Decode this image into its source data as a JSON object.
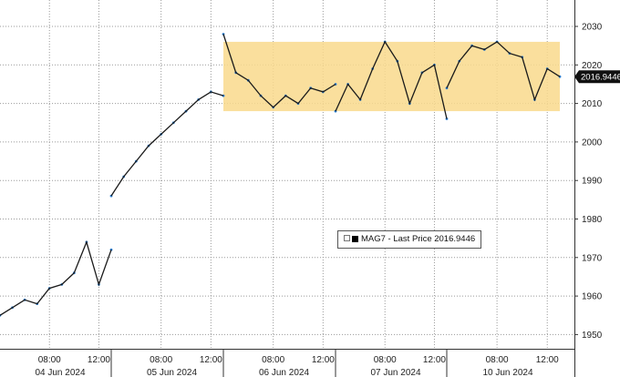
{
  "chart_data": {
    "type": "line",
    "series": [
      {
        "name": "MAG7",
        "x": [
          "06-04 04:00",
          "06-04 05:00",
          "06-04 06:00",
          "06-04 07:00",
          "06-04 08:00",
          "06-04 09:00",
          "06-04 10:00",
          "06-04 11:00",
          "06-04 12:00",
          "06-04 13:00",
          "06-05 04:00",
          "06-05 05:00",
          "06-05 06:00",
          "06-05 07:00",
          "06-05 08:00",
          "06-05 09:00",
          "06-05 10:00",
          "06-05 11:00",
          "06-05 12:00",
          "06-05 13:00",
          "06-06 04:00",
          "06-06 05:00",
          "06-06 06:00",
          "06-06 07:00",
          "06-06 08:00",
          "06-06 09:00",
          "06-06 10:00",
          "06-06 11:00",
          "06-06 12:00",
          "06-06 13:00",
          "06-07 04:00",
          "06-07 05:00",
          "06-07 06:00",
          "06-07 07:00",
          "06-07 08:00",
          "06-07 09:00",
          "06-07 10:00",
          "06-07 11:00",
          "06-07 12:00",
          "06-07 13:00",
          "06-10 04:00",
          "06-10 05:00",
          "06-10 06:00",
          "06-10 07:00",
          "06-10 08:00",
          "06-10 09:00",
          "06-10 10:00",
          "06-10 11:00",
          "06-10 12:00",
          "06-10 13:00"
        ],
        "values": [
          1955,
          1957,
          1959,
          1958,
          1962,
          1963,
          1966,
          1974,
          1963,
          1972,
          1986,
          1991,
          1995,
          1999,
          2002,
          2005,
          2008,
          2011,
          2013,
          2012,
          2028,
          2018,
          2016,
          2012,
          2009,
          2012,
          2010,
          2014,
          2013,
          2015,
          2008,
          2015,
          2011,
          2019,
          2026,
          2021,
          2010,
          2018,
          2020,
          2006,
          2014,
          2021,
          2025,
          2024,
          2026,
          2023,
          2022,
          2011,
          2019,
          2016.9446
        ]
      }
    ],
    "last_price": "2016.9446",
    "legend_text": "MAG7 - Last Price 2016.9446",
    "x_tick_labels": [
      "08:00",
      "12:00",
      "08:00",
      "12:00",
      "08:00",
      "12:00",
      "08:00",
      "12:00",
      "08:00",
      "12:00"
    ],
    "date_labels": [
      "04 Jun 2024",
      "05 Jun 2024",
      "06 Jun 2024",
      "07 Jun 2024",
      "10 Jun 2024"
    ],
    "y_ticks": [
      1950,
      1960,
      1970,
      1980,
      1990,
      2000,
      2010,
      2020,
      2030
    ],
    "ylim": [
      1945,
      2035
    ],
    "y_axis_side": "right",
    "highlight_band": {
      "from": 2008,
      "to": 2026,
      "start": "06-06 04:00",
      "end": "06-10 13:00",
      "color": "#f9d98c"
    },
    "grid": true,
    "legend_placement": "center-right",
    "line_color": "#1a1a1a",
    "accent_color": "#2a7fd4"
  }
}
